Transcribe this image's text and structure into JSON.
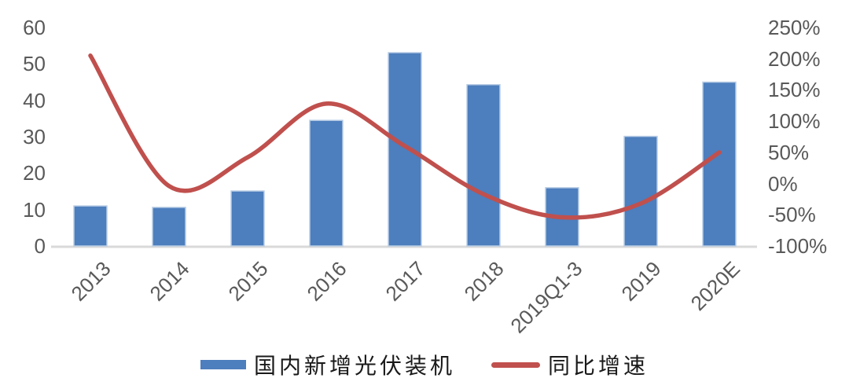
{
  "chart_data": {
    "type": "bar",
    "subtype": "bar-line-combo",
    "categories": [
      "2013",
      "2014",
      "2015",
      "2016",
      "2017",
      "2018",
      "2019Q1-3",
      "2019",
      "2020E"
    ],
    "series": [
      {
        "name": "国内新增光伏装机",
        "type": "bar",
        "axis": "left",
        "color": "#4D7EBD",
        "border_color": "#B9CDE5",
        "values": [
          11,
          10.6,
          15.1,
          34.5,
          53.1,
          44.3,
          16,
          30.1,
          45
        ]
      },
      {
        "name": "同比增速",
        "type": "line",
        "axis": "right",
        "color": "#C0504D",
        "values_pct": [
          205,
          -4,
          42,
          128,
          60,
          -17,
          -54,
          -32,
          50
        ]
      }
    ],
    "left_axis": {
      "min": 0,
      "max": 60,
      "tick_labels": [
        "60",
        "50",
        "40",
        "30",
        "20",
        "10",
        "0"
      ]
    },
    "right_axis": {
      "min": -100,
      "max": 250,
      "tick_labels": [
        "250%",
        "200%",
        "150%",
        "100%",
        "50%",
        "0%",
        "-50%",
        "-100%"
      ]
    },
    "title": "",
    "xlabel": "",
    "ylabel": "",
    "grid": false,
    "legend_position": "bottom",
    "smoothed_line": true
  },
  "colors": {
    "axis_text": "#595959",
    "baseline": "#D9D9D9",
    "background": "#FFFFFF"
  }
}
